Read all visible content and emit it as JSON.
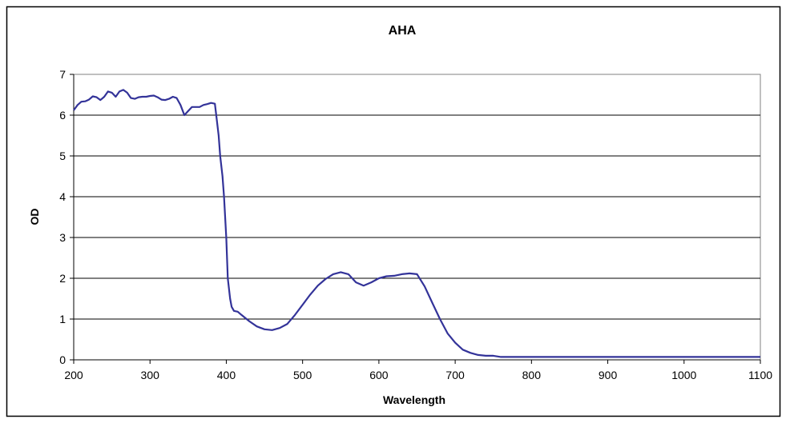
{
  "colors": {
    "series": "#333399",
    "grid": "#000000",
    "plot_border": "#808080",
    "frame": "#000000",
    "background": "#ffffff"
  },
  "chart_data": {
    "type": "line",
    "title": "AHA",
    "xlabel": "Wavelength",
    "ylabel": "OD",
    "xlim": [
      200,
      1100
    ],
    "ylim": [
      0,
      7
    ],
    "x_ticks": [
      200,
      300,
      400,
      500,
      600,
      700,
      800,
      900,
      1000,
      1100
    ],
    "y_ticks": [
      0,
      1,
      2,
      3,
      4,
      5,
      6,
      7
    ],
    "grid": "horizontal",
    "legend": "none",
    "series": [
      {
        "x": [
          200,
          205,
          210,
          215,
          220,
          225,
          230,
          235,
          240,
          245,
          250,
          255,
          260,
          265,
          270,
          275,
          280,
          285,
          290,
          295,
          300,
          305,
          310,
          315,
          320,
          325,
          330,
          335,
          340,
          345,
          350,
          355,
          360,
          365,
          370,
          375,
          380,
          385,
          390,
          392,
          395,
          397,
          400,
          402,
          405,
          407,
          410,
          415,
          420,
          430,
          440,
          450,
          460,
          470,
          480,
          490,
          500,
          510,
          520,
          530,
          540,
          550,
          560,
          570,
          580,
          590,
          600,
          610,
          620,
          630,
          640,
          650,
          660,
          670,
          680,
          690,
          700,
          710,
          720,
          730,
          740,
          750,
          760,
          800,
          900,
          1000,
          1100
        ],
        "y": [
          6.12,
          6.25,
          6.33,
          6.34,
          6.38,
          6.46,
          6.44,
          6.37,
          6.45,
          6.58,
          6.55,
          6.45,
          6.58,
          6.62,
          6.55,
          6.42,
          6.4,
          6.44,
          6.45,
          6.45,
          6.47,
          6.48,
          6.44,
          6.38,
          6.37,
          6.4,
          6.45,
          6.42,
          6.25,
          6.0,
          6.1,
          6.2,
          6.2,
          6.2,
          6.25,
          6.27,
          6.3,
          6.28,
          5.5,
          5.0,
          4.5,
          4.0,
          3.0,
          2.0,
          1.5,
          1.3,
          1.2,
          1.18,
          1.1,
          0.95,
          0.82,
          0.75,
          0.73,
          0.78,
          0.88,
          1.1,
          1.35,
          1.6,
          1.82,
          1.98,
          2.1,
          2.15,
          2.1,
          1.9,
          1.82,
          1.9,
          2.0,
          2.05,
          2.06,
          2.1,
          2.12,
          2.1,
          1.8,
          1.4,
          1.0,
          0.65,
          0.42,
          0.25,
          0.17,
          0.12,
          0.1,
          0.1,
          0.07,
          0.07,
          0.07,
          0.07,
          0.07
        ]
      }
    ]
  }
}
